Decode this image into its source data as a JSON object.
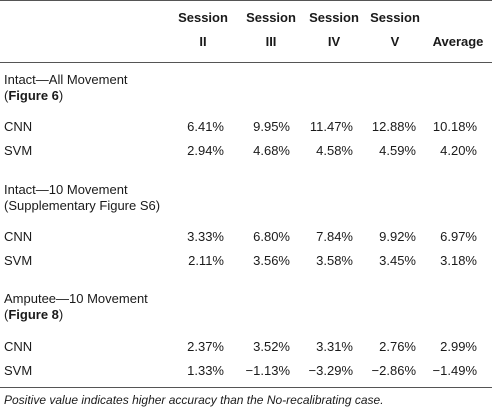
{
  "header": {
    "col_session_label": "Session",
    "cols": [
      "II",
      "III",
      "IV",
      "V"
    ],
    "average_label": "Average"
  },
  "sections": [
    {
      "title_line1": "Intact—All Movement",
      "title_line2_prefix": "(",
      "title_line2_ref": "Figure 6",
      "title_line2_suffix": ")",
      "rows": [
        {
          "label": "CNN",
          "values": [
            "6.41%",
            "9.95%",
            "11.47%",
            "12.88%",
            "10.18%"
          ]
        },
        {
          "label": "SVM",
          "values": [
            "2.94%",
            "4.68%",
            "4.58%",
            "4.59%",
            "4.20%"
          ]
        }
      ]
    },
    {
      "title_line1": "Intact—10 Movement",
      "title_line2_prefix": "(Supplementary Figure  S6)",
      "title_line2_ref": "",
      "title_line2_suffix": "",
      "rows": [
        {
          "label": "CNN",
          "values": [
            "3.33%",
            "6.80%",
            "7.84%",
            "9.92%",
            "6.97%"
          ]
        },
        {
          "label": "SVM",
          "values": [
            "2.11%",
            "3.56%",
            "3.58%",
            "3.45%",
            "3.18%"
          ]
        }
      ]
    },
    {
      "title_line1": "Amputee—10 Movement",
      "title_line2_prefix": "(",
      "title_line2_ref": "Figure 8",
      "title_line2_suffix": ")",
      "rows": [
        {
          "label": "CNN",
          "values": [
            "2.37%",
            "3.52%",
            "3.31%",
            "2.76%",
            "2.99%"
          ]
        },
        {
          "label": "SVM",
          "values": [
            "1.33%",
            "−1.13%",
            "−3.29%",
            "−2.86%",
            "−1.49%"
          ]
        }
      ]
    }
  ],
  "footnote": "Positive value indicates higher accuracy than the No-recalibrating case."
}
